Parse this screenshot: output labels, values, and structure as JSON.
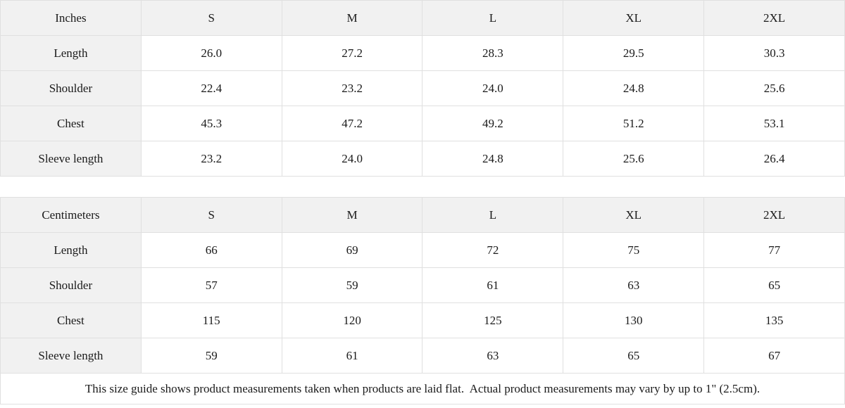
{
  "colors": {
    "header_bg": "#f1f1f1",
    "label_bg": "#f1f1f1",
    "border": "#e0e0e0",
    "cell_bg": "#ffffff",
    "text": "#1a1a1a"
  },
  "size_guide": {
    "tables": [
      {
        "unit_label": "Inches",
        "size_headers": [
          "S",
          "M",
          "L",
          "XL",
          "2XL"
        ],
        "rows": [
          {
            "label": "Length",
            "values": [
              "26.0",
              "27.2",
              "28.3",
              "29.5",
              "30.3"
            ]
          },
          {
            "label": "Shoulder",
            "values": [
              "22.4",
              "23.2",
              "24.0",
              "24.8",
              "25.6"
            ]
          },
          {
            "label": "Chest",
            "values": [
              "45.3",
              "47.2",
              "49.2",
              "51.2",
              "53.1"
            ]
          },
          {
            "label": "Sleeve length",
            "values": [
              "23.2",
              "24.0",
              "24.8",
              "25.6",
              "26.4"
            ]
          }
        ]
      },
      {
        "unit_label": "Centimeters",
        "size_headers": [
          "S",
          "M",
          "L",
          "XL",
          "2XL"
        ],
        "rows": [
          {
            "label": "Length",
            "values": [
              "66",
              "69",
              "72",
              "75",
              "77"
            ]
          },
          {
            "label": "Shoulder",
            "values": [
              "57",
              "59",
              "61",
              "63",
              "65"
            ]
          },
          {
            "label": "Chest",
            "values": [
              "115",
              "120",
              "125",
              "130",
              "135"
            ]
          },
          {
            "label": "Sleeve length",
            "values": [
              "59",
              "61",
              "63",
              "65",
              "67"
            ]
          }
        ]
      }
    ],
    "note": "This size guide shows product measurements taken when products are laid flat.  Actual product measurements may vary by up to 1\" (2.5cm)."
  }
}
